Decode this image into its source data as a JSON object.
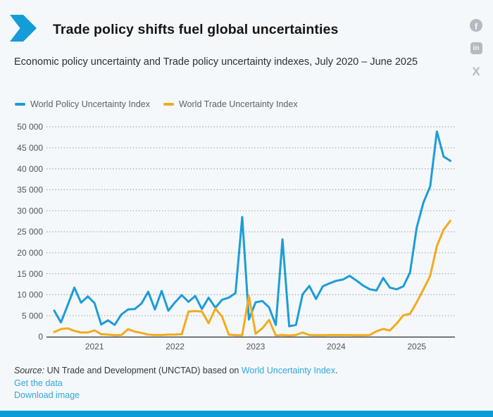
{
  "page": {
    "background": "#f5f8fa",
    "bottom_bar_color": "#0d9bd8"
  },
  "header": {
    "title": "Trade policy shifts fuel global uncertainties",
    "subtitle": "Economic policy uncertainty and Trade policy uncertainty indexes, July 2020 – June 2025",
    "brand_color": "#149cd8",
    "social_color": "#b3bac0",
    "social": [
      {
        "name": "facebook",
        "glyph": "f"
      },
      {
        "name": "linkedin",
        "glyph": "in"
      },
      {
        "name": "x",
        "glyph": "X"
      }
    ]
  },
  "legend": [
    {
      "label": "World Policy Uncertainty Index",
      "color": "#1d9cd8"
    },
    {
      "label": "World Trade Uncertainty Index",
      "color": "#f2ab1d"
    }
  ],
  "chart_data": {
    "type": "line",
    "title": "Economic policy uncertainty and Trade policy uncertainty indexes, July 2020 – June 2025",
    "xlabel": "",
    "ylabel": "",
    "ylim": [
      0,
      50000
    ],
    "grid": "dotted horizontal",
    "legend_position": "top-left",
    "x": [
      "2020-07",
      "2020-08",
      "2020-09",
      "2020-10",
      "2020-11",
      "2020-12",
      "2021-01",
      "2021-02",
      "2021-03",
      "2021-04",
      "2021-05",
      "2021-06",
      "2021-07",
      "2021-08",
      "2021-09",
      "2021-10",
      "2021-11",
      "2021-12",
      "2022-01",
      "2022-02",
      "2022-03",
      "2022-04",
      "2022-05",
      "2022-06",
      "2022-07",
      "2022-08",
      "2022-09",
      "2022-10",
      "2022-11",
      "2022-12",
      "2023-01",
      "2023-02",
      "2023-03",
      "2023-04",
      "2023-05",
      "2023-06",
      "2023-07",
      "2023-08",
      "2023-09",
      "2023-10",
      "2023-11",
      "2023-12",
      "2024-01",
      "2024-02",
      "2024-03",
      "2024-04",
      "2024-05",
      "2024-06",
      "2024-07",
      "2024-08",
      "2024-09",
      "2024-10",
      "2024-11",
      "2024-12",
      "2025-01",
      "2025-02",
      "2025-03",
      "2025-04",
      "2025-05",
      "2025-06"
    ],
    "x_ticks": [
      {
        "label": "2021",
        "month": "2021-01"
      },
      {
        "label": "2022",
        "month": "2022-01"
      },
      {
        "label": "2023",
        "month": "2023-01"
      },
      {
        "label": "2024",
        "month": "2024-01"
      },
      {
        "label": "2025",
        "month": "2025-01"
      }
    ],
    "y_ticks": [
      {
        "value": 0,
        "label": "0"
      },
      {
        "value": 5000,
        "label": "5 000"
      },
      {
        "value": 10000,
        "label": "10 000"
      },
      {
        "value": 15000,
        "label": "15 000"
      },
      {
        "value": 20000,
        "label": "20 000"
      },
      {
        "value": 25000,
        "label": "25 000"
      },
      {
        "value": 30000,
        "label": "30 000"
      },
      {
        "value": 35000,
        "label": "35 000"
      },
      {
        "value": 40000,
        "label": "40 000"
      },
      {
        "value": 45000,
        "label": "45 000"
      },
      {
        "value": 50000,
        "label": "50 000"
      }
    ],
    "series": [
      {
        "name": "World Policy Uncertainty Index",
        "color": "#1d9cd8",
        "values": [
          6200,
          3400,
          7500,
          11700,
          8100,
          9600,
          8000,
          2900,
          3900,
          2800,
          5300,
          6500,
          6600,
          7900,
          10700,
          6500,
          10900,
          6200,
          8200,
          9900,
          8300,
          9700,
          6600,
          9300,
          6900,
          8800,
          9300,
          10400,
          28500,
          4100,
          8200,
          8500,
          7000,
          2800,
          23200,
          2500,
          2800,
          10100,
          12100,
          9000,
          12000,
          12700,
          13300,
          13600,
          14500,
          13400,
          12200,
          11300,
          11000,
          14000,
          11700,
          11300,
          12000,
          15300,
          26000,
          32000,
          35800,
          48900,
          42900,
          41900
        ]
      },
      {
        "name": "World Trade Uncertainty Index",
        "color": "#f2ab1d",
        "values": [
          1100,
          1800,
          2000,
          1400,
          1000,
          1000,
          1500,
          600,
          500,
          350,
          400,
          1800,
          1200,
          900,
          500,
          400,
          400,
          500,
          500,
          600,
          6000,
          6100,
          6000,
          3200,
          6700,
          4800,
          500,
          350,
          350,
          9700,
          700,
          2000,
          4000,
          300,
          400,
          300,
          400,
          1000,
          400,
          350,
          350,
          400,
          400,
          400,
          400,
          350,
          350,
          400,
          1300,
          1850,
          1500,
          3100,
          5100,
          5450,
          8200,
          11300,
          14500,
          21600,
          25500,
          27600
        ]
      }
    ]
  },
  "footer": {
    "source_prefix": "Source:",
    "source_text": " UN Trade and Development (UNCTAD) based on ",
    "source_link": "World Uncertainty Index",
    "source_suffix": ".",
    "link_color": "#2ea7dd",
    "links": [
      {
        "label": "Get the data"
      },
      {
        "label": "Download image"
      }
    ]
  }
}
